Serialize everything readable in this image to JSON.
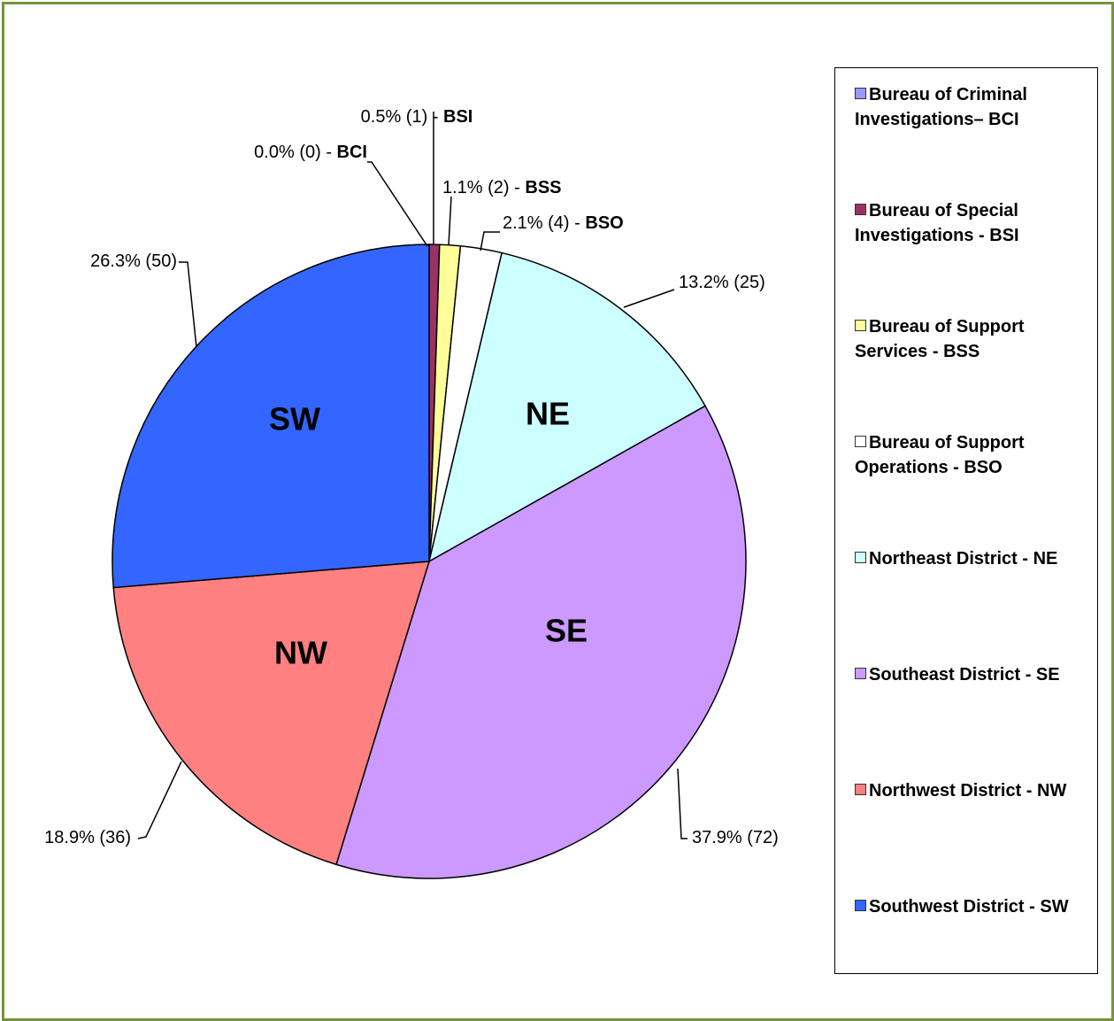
{
  "chart_data": {
    "type": "pie",
    "categories": [
      "Bureau of Criminal Investigations– BCI",
      "Bureau of Special Investigations - BSI",
      "Bureau of Support Services - BSS",
      "Bureau of Support Operations - BSO",
      "Northeast District - NE",
      "Southeast District - SE",
      "Northwest District - NW",
      "Southwest District - SW"
    ],
    "short_names": [
      "BCI",
      "BSI",
      "BSS",
      "BSO",
      "NE",
      "SE",
      "NW",
      "SW"
    ],
    "values": [
      0,
      1,
      2,
      4,
      25,
      72,
      36,
      50
    ],
    "value_labels": [
      "0.0% (0) -",
      "0.5% (1) -",
      "1.1% (2) -",
      "2.1% (4) -",
      "13.2% (25)",
      "37.9% (72)",
      "18.9% (36)",
      "26.3% (50)"
    ],
    "colors": [
      "#9999ff",
      "#993366",
      "#ffff99",
      "#ffffff",
      "#ccffff",
      "#cc99ff",
      "#ff8080",
      "#3366ff"
    ],
    "legend": "right"
  }
}
